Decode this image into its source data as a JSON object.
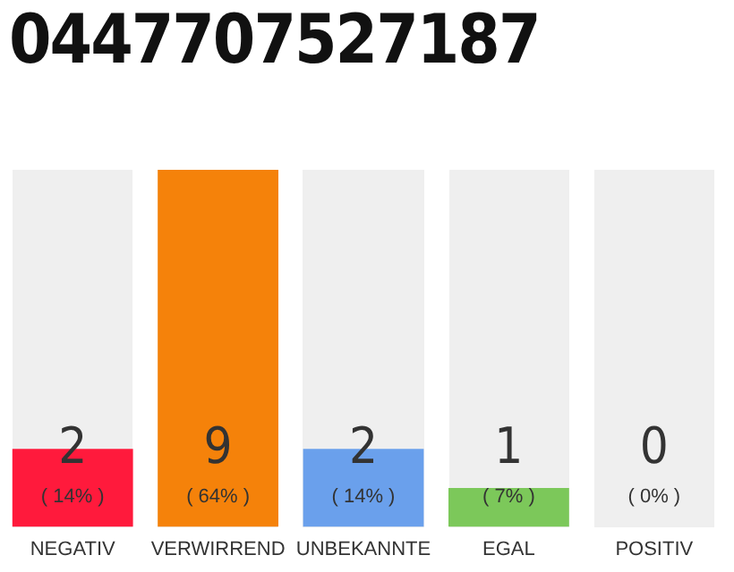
{
  "chart_data": {
    "type": "bar",
    "title": "0447707527187",
    "categories": [
      "NEGATIV",
      "VERWIRREND",
      "UNBEKANNTE",
      "EGAL",
      "POSITIV"
    ],
    "values": [
      14,
      64,
      14,
      7,
      0
    ],
    "colors": [
      "#ff1a3c",
      "#f5820a",
      "#6aa0ec",
      "#7cc85a",
      "#7cc85a"
    ],
    "value_labels": [
      "2\n( 14% )",
      "9\n( 64% )",
      "2\n( 14% )",
      "1\n( 7% )",
      "0\n( 0% )"
    ],
    "grid": false,
    "legend": false
  }
}
